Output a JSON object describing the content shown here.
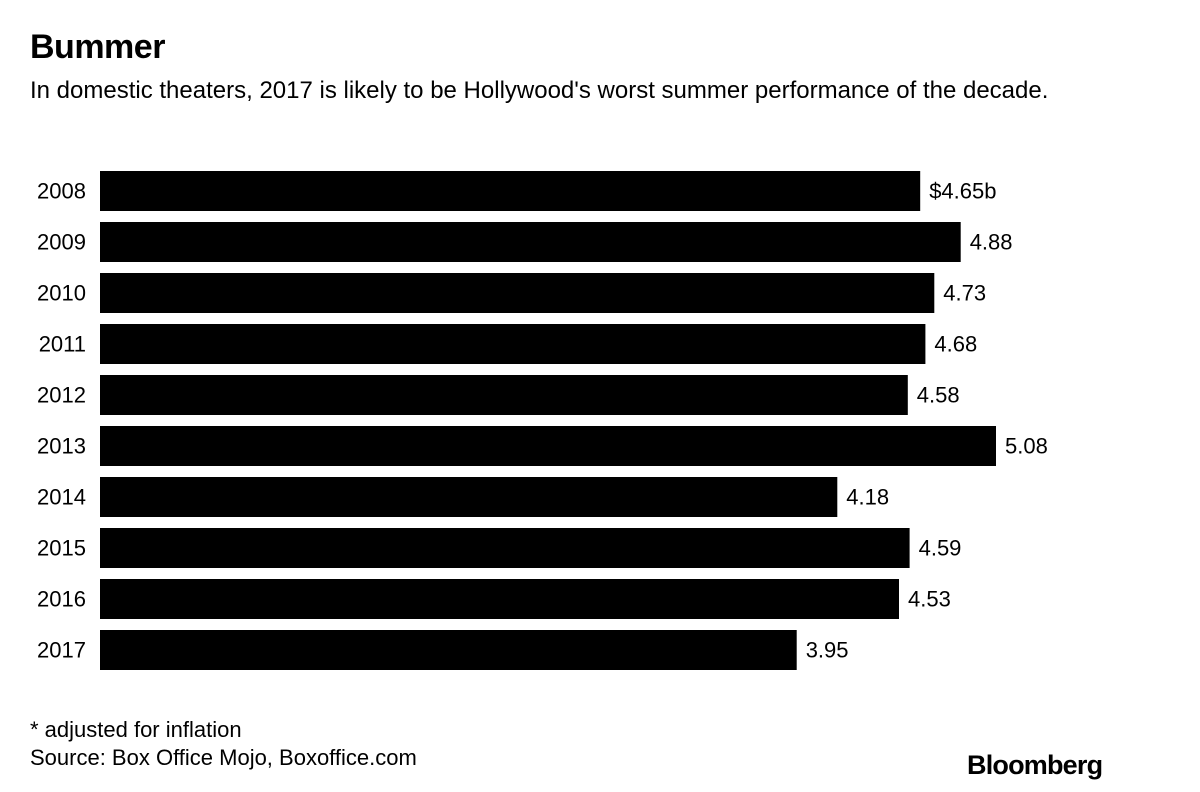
{
  "chart_data": {
    "type": "bar",
    "orientation": "horizontal",
    "title": "Bummer",
    "subtitle": "In domestic theaters, 2017 is likely to be Hollywood's worst summer performance of the decade.",
    "categories": [
      "2008",
      "2009",
      "2010",
      "2011",
      "2012",
      "2013",
      "2014",
      "2015",
      "2016",
      "2017"
    ],
    "values": [
      4.65,
      4.88,
      4.73,
      4.68,
      4.58,
      5.08,
      4.18,
      4.59,
      4.53,
      3.95
    ],
    "value_labels": [
      "$4.65b",
      "4.88",
      "4.73",
      "4.68",
      "4.58",
      "5.08",
      "4.18",
      "4.59",
      "4.53",
      "3.95"
    ],
    "xlim": [
      0,
      5.08
    ],
    "xlabel": "",
    "ylabel": "",
    "bar_color": "#000000"
  },
  "footnote": "* adjusted for inflation",
  "source": "Source: Box Office Mojo, Boxoffice.com",
  "brand": "Bloomberg"
}
